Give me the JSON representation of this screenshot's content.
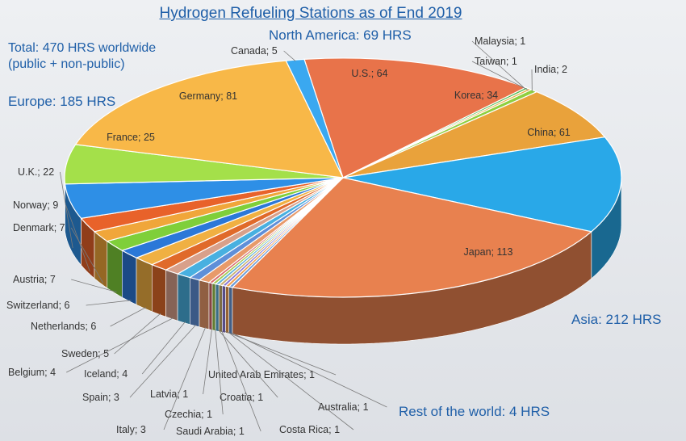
{
  "chart_data": {
    "type": "pie",
    "title": "Hydrogen Refueling Stations as of End 2019",
    "total_note_line1": "Total: 470 HRS worldwide",
    "total_note_line2": "(public + non-public)",
    "region_labels": {
      "europe": "Europe: 185 HRS",
      "north_america": "North America: 69 HRS",
      "asia": "Asia: 212 HRS",
      "rest": "Rest of the world: 4 HRS"
    },
    "slices": [
      {
        "label": "U.S.",
        "value": 64,
        "color": "#e8734a"
      },
      {
        "label": "Malaysia",
        "value": 1,
        "color": "#4db84d"
      },
      {
        "label": "Taiwan",
        "value": 1,
        "color": "#e8b34a"
      },
      {
        "label": "India",
        "value": 2,
        "color": "#8fcf3f"
      },
      {
        "label": "Korea",
        "value": 34,
        "color": "#e9a23b"
      },
      {
        "label": "China",
        "value": 61,
        "color": "#29a8e8"
      },
      {
        "label": "Japan",
        "value": 113,
        "color": "#e8814f"
      },
      {
        "label": "Australia",
        "value": 1,
        "color": "#6a9ad8"
      },
      {
        "label": "Costa Rica",
        "value": 1,
        "color": "#f0a050"
      },
      {
        "label": "United Arab Emirates",
        "value": 1,
        "color": "#8a7ad8"
      },
      {
        "label": "Saudi Arabia",
        "value": 1,
        "color": "#c8b070"
      },
      {
        "label": "Croatia",
        "value": 1,
        "color": "#5fb0d8"
      },
      {
        "label": "Czechia",
        "value": 1,
        "color": "#a0c850"
      },
      {
        "label": "Latvia",
        "value": 1,
        "color": "#d86a6a"
      },
      {
        "label": "Italy",
        "value": 3,
        "color": "#e89a6a"
      },
      {
        "label": "Spain",
        "value": 3,
        "color": "#5f8fd8"
      },
      {
        "label": "Iceland",
        "value": 4,
        "color": "#48b0e0"
      },
      {
        "label": "Belgium",
        "value": 4,
        "color": "#d8a08a"
      },
      {
        "label": "Sweden",
        "value": 5,
        "color": "#e06a2a"
      },
      {
        "label": "Netherlands",
        "value": 6,
        "color": "#f0b042"
      },
      {
        "label": "Switzerland",
        "value": 6,
        "color": "#2b78d8"
      },
      {
        "label": "Austria",
        "value": 7,
        "color": "#7fcf3a"
      },
      {
        "label": "Denmark",
        "value": 7,
        "color": "#f0a63a"
      },
      {
        "label": "Norway",
        "value": 9,
        "color": "#e8622a"
      },
      {
        "label": "U.K.",
        "value": 22,
        "color": "#2e8fe6"
      },
      {
        "label": "France",
        "value": 25,
        "color": "#a4e04a"
      },
      {
        "label": "Germany",
        "value": 81,
        "color": "#f8b848"
      },
      {
        "label": "Canada",
        "value": 5,
        "color": "#3aa8f0"
      }
    ]
  }
}
